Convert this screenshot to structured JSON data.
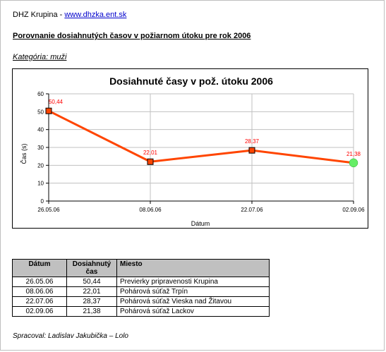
{
  "header": {
    "site_name": "DHZ Krupina",
    "separator": " - ",
    "site_url": "www.dhzka.ent.sk"
  },
  "report_title": "Porovnanie dosiahnutých časov v požiarnom útoku pre rok 2006",
  "category": "Kategória: muži",
  "chart_data": {
    "type": "line",
    "title": "Dosiahnuté časy v pož. útoku 2006",
    "xlabel": "Dátum",
    "ylabel": "Čas (s)",
    "ylim": [
      0,
      60
    ],
    "yticks": [
      0,
      10,
      20,
      30,
      40,
      50,
      60
    ],
    "categories": [
      "26.05.06",
      "08.06.06",
      "22.07.06",
      "02.09.06"
    ],
    "values": [
      50.44,
      22.01,
      28.37,
      21.38
    ],
    "data_labels": [
      "50,44",
      "22,01",
      "28,37",
      "21,38"
    ],
    "grid": true,
    "legend": false,
    "colors": {
      "line": "#ff4500",
      "marker": "#ff4500",
      "last_marker": "#66ee66",
      "label": "#ff0000"
    }
  },
  "table": {
    "headers": [
      "Dátum",
      "Dosiahnutý čas",
      "Miesto"
    ],
    "rows": [
      [
        "26.05.06",
        "50,44",
        "Previerky pripravenosti Krupina"
      ],
      [
        "08.06.06",
        "22,01",
        "Pohárová súťaž Trpín"
      ],
      [
        "22.07.06",
        "28,37",
        "Pohárová súťaž Vieska nad Žitavou"
      ],
      [
        "02.09.06",
        "21,38",
        "Pohárová súťaž Lackov"
      ]
    ]
  },
  "footer": "Spracoval: Ladislav Jakubička – Lolo"
}
